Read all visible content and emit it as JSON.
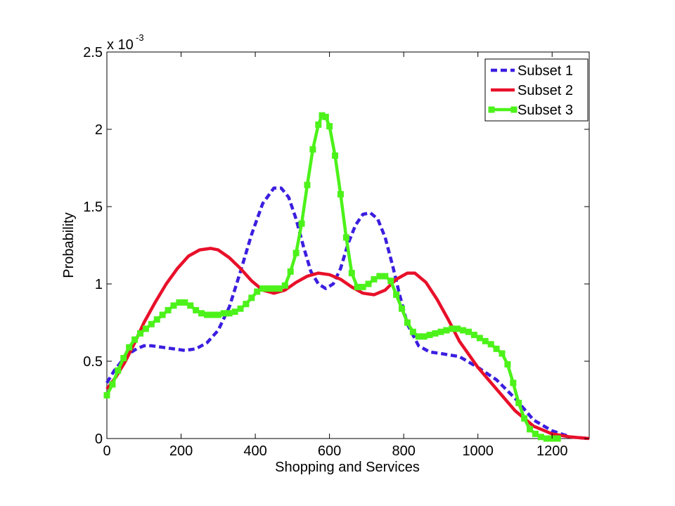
{
  "chart_data": {
    "type": "line",
    "xlabel": "Shopping and Services",
    "ylabel": "Probability",
    "y_multiplier_base": "x 10",
    "y_multiplier_exponent": "-3",
    "xlim": [
      0,
      1300
    ],
    "ylim": [
      0,
      2.5
    ],
    "xticks": [
      0,
      200,
      400,
      600,
      800,
      1000,
      1200
    ],
    "xtick_labels": [
      "0",
      "200",
      "400",
      "600",
      "800",
      "1000",
      "1200"
    ],
    "yticks": [
      0,
      0.5,
      1,
      1.5,
      2,
      2.5
    ],
    "ytick_labels": [
      "0",
      "0.5",
      "1",
      "1.5",
      "2",
      "2.5"
    ],
    "grid": false,
    "legend_position": "top-right",
    "series": [
      {
        "name": "Subset 1",
        "color": "#3b1ee0",
        "style": "dashed",
        "marker": "none",
        "x": [
          0,
          20,
          40,
          60,
          80,
          100,
          120,
          150,
          180,
          210,
          240,
          270,
          300,
          330,
          360,
          390,
          420,
          450,
          470,
          490,
          510,
          530,
          550,
          570,
          590,
          610,
          630,
          650,
          670,
          690,
          710,
          730,
          750,
          770,
          790,
          810,
          840,
          870,
          900,
          950,
          1000,
          1050,
          1100,
          1150,
          1200,
          1250,
          1300
        ],
        "y": [
          0.36,
          0.44,
          0.5,
          0.55,
          0.58,
          0.6,
          0.6,
          0.59,
          0.58,
          0.57,
          0.58,
          0.62,
          0.7,
          0.85,
          1.08,
          1.32,
          1.52,
          1.62,
          1.62,
          1.56,
          1.42,
          1.24,
          1.08,
          1.0,
          0.97,
          1.0,
          1.1,
          1.26,
          1.38,
          1.45,
          1.46,
          1.42,
          1.3,
          1.12,
          0.92,
          0.74,
          0.6,
          0.56,
          0.55,
          0.53,
          0.46,
          0.38,
          0.26,
          0.12,
          0.05,
          0.01,
          0.0
        ]
      },
      {
        "name": "Subset 2",
        "color": "#e8102a",
        "style": "solid",
        "marker": "none",
        "x": [
          0,
          25,
          50,
          75,
          100,
          130,
          160,
          190,
          220,
          250,
          280,
          300,
          330,
          360,
          390,
          420,
          450,
          480,
          510,
          540,
          570,
          600,
          630,
          660,
          690,
          720,
          750,
          780,
          810,
          830,
          860,
          890,
          920,
          950,
          1000,
          1050,
          1100,
          1150,
          1200,
          1250,
          1300
        ],
        "y": [
          0.32,
          0.4,
          0.5,
          0.62,
          0.75,
          0.88,
          1.0,
          1.1,
          1.18,
          1.22,
          1.23,
          1.22,
          1.17,
          1.1,
          1.02,
          0.96,
          0.94,
          0.96,
          1.01,
          1.05,
          1.07,
          1.06,
          1.03,
          0.98,
          0.94,
          0.93,
          0.96,
          1.03,
          1.07,
          1.07,
          1.01,
          0.9,
          0.77,
          0.63,
          0.46,
          0.32,
          0.18,
          0.08,
          0.03,
          0.01,
          0.0
        ]
      },
      {
        "name": "Subset 3",
        "color": "#4cf21a",
        "style": "solid",
        "marker": "square",
        "x": [
          0,
          15,
          30,
          45,
          60,
          75,
          90,
          105,
          120,
          135,
          150,
          165,
          180,
          195,
          210,
          225,
          240,
          255,
          270,
          285,
          300,
          315,
          330,
          345,
          360,
          375,
          390,
          405,
          420,
          435,
          450,
          465,
          480,
          495,
          510,
          525,
          540,
          555,
          570,
          580,
          590,
          600,
          615,
          630,
          645,
          660,
          675,
          690,
          705,
          720,
          735,
          750,
          765,
          780,
          795,
          810,
          825,
          840,
          855,
          870,
          885,
          900,
          915,
          930,
          945,
          960,
          975,
          990,
          1005,
          1020,
          1035,
          1050,
          1065,
          1080,
          1095,
          1110,
          1125,
          1140,
          1155,
          1170,
          1185,
          1200,
          1215
        ],
        "y": [
          0.28,
          0.35,
          0.44,
          0.52,
          0.59,
          0.64,
          0.68,
          0.71,
          0.74,
          0.77,
          0.8,
          0.83,
          0.86,
          0.88,
          0.88,
          0.86,
          0.83,
          0.81,
          0.8,
          0.8,
          0.8,
          0.81,
          0.81,
          0.82,
          0.84,
          0.87,
          0.91,
          0.95,
          0.97,
          0.97,
          0.97,
          0.97,
          0.99,
          1.08,
          1.2,
          1.39,
          1.64,
          1.87,
          2.03,
          2.09,
          2.08,
          2.02,
          1.83,
          1.58,
          1.3,
          1.07,
          0.98,
          0.98,
          1.0,
          1.03,
          1.05,
          1.05,
          1.02,
          0.93,
          0.84,
          0.75,
          0.69,
          0.66,
          0.66,
          0.67,
          0.68,
          0.69,
          0.7,
          0.71,
          0.71,
          0.7,
          0.69,
          0.67,
          0.65,
          0.63,
          0.61,
          0.58,
          0.55,
          0.48,
          0.36,
          0.23,
          0.13,
          0.06,
          0.03,
          0.01,
          0.0,
          0.0,
          0.0
        ]
      }
    ]
  }
}
